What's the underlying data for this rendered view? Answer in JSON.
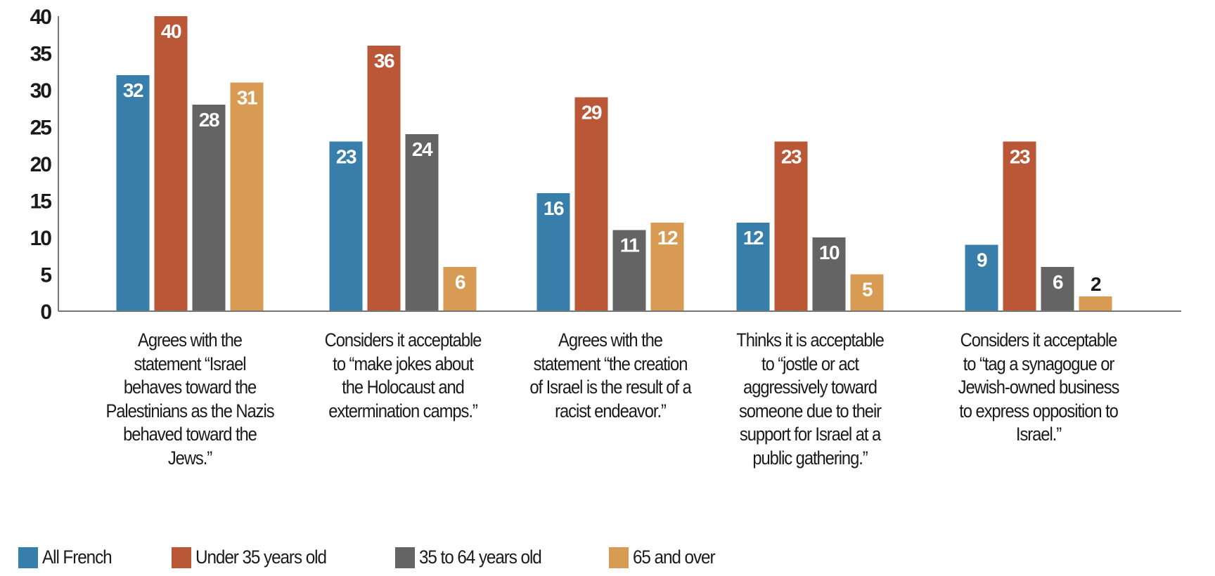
{
  "chart_data": {
    "type": "bar",
    "title": "",
    "xlabel": "",
    "ylabel": "",
    "ylim": [
      0,
      40
    ],
    "yticks": [
      0,
      5,
      10,
      15,
      20,
      25,
      30,
      35,
      40
    ],
    "grid": false,
    "legend_position": "bottom-left",
    "categories": [
      "Agrees with the statement “Israel behaves toward the Palestinians as the Nazis behaved toward the Jews.”",
      "Considers it acceptable to “make jokes about the Holocaust and extermination camps.”",
      "Agrees with the statement “the creation of Israel is the result of a racist endeavor.”",
      "Thinks it is acceptable to “jostle or act aggressively toward someone due to their support for Israel at a public gathering.”",
      "Considers it acceptable to “tag a synagogue or Jewish-owned business to express opposition to Israel.”"
    ],
    "category_lines": [
      [
        "Agrees with the",
        "statement “Israel",
        "behaves toward the",
        "Palestinians as the Nazis",
        "behaved toward the",
        "Jews.”"
      ],
      [
        "Considers it acceptable",
        "to “make jokes about",
        "the Holocaust and",
        "extermination camps.”"
      ],
      [
        "Agrees with the",
        "statement “the creation",
        "of Israel is the result of a",
        "racist endeavor.”"
      ],
      [
        "Thinks it is acceptable",
        "to “jostle or act",
        "aggressively toward",
        "someone due to their",
        "support for Israel at a",
        "public gathering.”"
      ],
      [
        "Considers it acceptable",
        "to “tag a synagogue or",
        "Jewish-owned business",
        "to express opposition to",
        "Israel.”"
      ]
    ],
    "series": [
      {
        "name": "All French",
        "color": "#377EAB",
        "values": [
          32,
          23,
          16,
          12,
          9
        ]
      },
      {
        "name": "Under 35 years old",
        "color": "#BA5736",
        "values": [
          40,
          36,
          29,
          23,
          23
        ]
      },
      {
        "name": "35 to 64 years old",
        "color": "#646464",
        "values": [
          28,
          24,
          11,
          10,
          6
        ]
      },
      {
        "name": "65 and over",
        "color": "#D89B54",
        "values": [
          31,
          6,
          12,
          5,
          2
        ]
      }
    ]
  }
}
